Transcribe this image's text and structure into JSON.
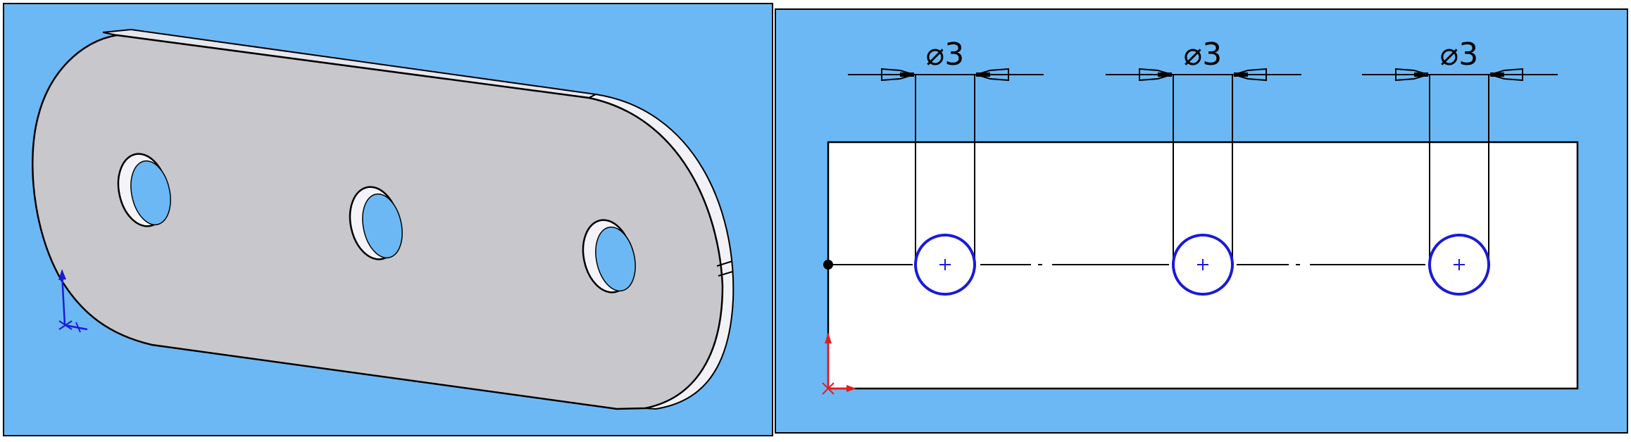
{
  "colors": {
    "viewport_background": "#6cb8f5",
    "part_face": "#c8c8cc",
    "part_edge": "#eaeaf0",
    "sketch_geometry": "#1a1ad8",
    "sketch_outline": "#000000",
    "origin": "#e02020",
    "triad": "#1a1ad8"
  },
  "left_viewport": {
    "icons": {
      "triad": "coordinate-triad-icon"
    }
  },
  "right_viewport": {
    "dimensions": [
      {
        "label": "⌀3"
      },
      {
        "label": "⌀3"
      },
      {
        "label": "⌀3"
      }
    ],
    "icons": {
      "origin": "sketch-origin-icon"
    }
  }
}
